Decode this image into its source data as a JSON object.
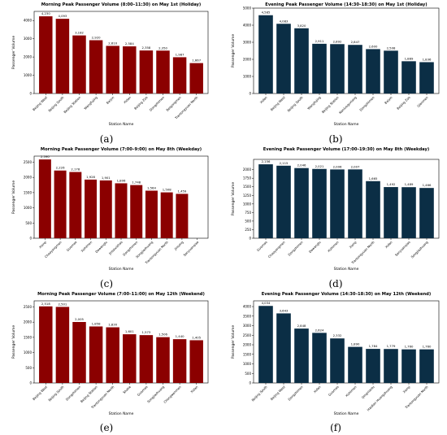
{
  "colors": {
    "red": "#8b0000",
    "blue": "#0b2e45"
  },
  "panel_labels": [
    "(a)",
    "(b)",
    "(c)",
    "(d)",
    "(e)",
    "(f)"
  ],
  "chart_data": [
    {
      "type": "bar",
      "title": "Morning Peak Passenger Volume (8:00–11:30) on May 1st (Holiday)",
      "xlabel": "Station Name",
      "ylabel": "Passenger Volume",
      "color": "red",
      "ylim": [
        0,
        4500
      ],
      "yticks": [
        0,
        1000,
        2000,
        3000,
        4000
      ],
      "categories": [
        "Beijing West",
        "Beijing South",
        "Beijing Station",
        "Wangfujing",
        "Baiyin",
        "Xidan",
        "Beijing Zoo",
        "Dongzhimen",
        "Beigongmen",
        "Tiantongyuan North"
      ],
      "values": [
        4230,
        4093,
        3182,
        2920,
        2610,
        2584,
        2358,
        2350,
        1987,
        1667
      ]
    },
    {
      "type": "bar",
      "title": "Evening Peak Passenger Volume (14:30–18:30) on May 1st (Holiday)",
      "xlabel": "Station Name",
      "ylabel": "Passenger Volume",
      "color": "blue",
      "ylim": [
        0,
        5000
      ],
      "yticks": [
        0,
        1000,
        2000,
        3000,
        4000,
        5000
      ],
      "categories": [
        "Xidan",
        "Beijing West",
        "Beijing South",
        "Wangfujing",
        "Beijing Station",
        "Nanluoguxiang",
        "Dongzhimen",
        "Baiyin",
        "Beijing Zoo",
        "Qianmen"
      ],
      "values": [
        4585,
        4083,
        3820,
        2911,
        2892,
        2847,
        2600,
        2508,
        1889,
        1836
      ]
    },
    {
      "type": "bar",
      "title": "Morning Peak Passenger Volume (7:00–9:00) on May 8th (Weekday)",
      "xlabel": "Station Name",
      "ylabel": "Passenger Volume",
      "color": "red",
      "ylim": [
        0,
        2700
      ],
      "yticks": [
        0,
        500,
        1000,
        1500,
        2000,
        2500
      ],
      "categories": [
        "Xierqi",
        "Chaoyangmen",
        "Guomao",
        "Xizhimen",
        "Dawanglu",
        "Jintaixizhao",
        "Dongzhimen",
        "Songjiazhuang",
        "Tiantongyuan North",
        "Jinsong",
        "Sanyuanqiao"
      ],
      "values": [
        2590,
        2226,
        2178,
        1928,
        1901,
        1806,
        1748,
        1564,
        1508,
        1459,
        null
      ]
    },
    {
      "type": "bar",
      "title": "Evening Peak Passenger Volume (17:00–19:30) on May 8th (Weekday)",
      "xlabel": "Station Name",
      "ylabel": "Passenger Volume",
      "color": "blue",
      "ylim": [
        0,
        2300
      ],
      "yticks": [
        0,
        250,
        500,
        750,
        1000,
        1250,
        1500,
        1750,
        2000
      ],
      "categories": [
        "Guomao",
        "Chaoyangmen",
        "Dongzhimen",
        "Dawanglu",
        "Xizhimen",
        "Xierqi",
        "Tiantongyuan North",
        "Xidan",
        "Sanyuanqiao",
        "Songjiazhuang"
      ],
      "values": [
        2156,
        2115,
        2046,
        2021,
        2006,
        2007,
        1665,
        1492,
        1489,
        1466
      ]
    },
    {
      "type": "bar",
      "title": "Morning Peak Passenger Volume (7:00–11:00) on May 12th (Weekend)",
      "xlabel": "Station Name",
      "ylabel": "Passenger Volume",
      "color": "red",
      "ylim": [
        0,
        2700
      ],
      "yticks": [
        0,
        500,
        1000,
        1500,
        2000,
        2500
      ],
      "categories": [
        "Beijing West",
        "Beijing South",
        "Dongzhimen",
        "Beijing Station",
        "Tiantongyuan North",
        "Shahe",
        "Guomao",
        "Songjiazhuang",
        "Chongwenmen",
        "Xidan"
      ],
      "values": [
        2518,
        2501,
        2005,
        1858,
        1830,
        1601,
        1573,
        1506,
        1440,
        1405
      ]
    },
    {
      "type": "bar",
      "title": "Evening Peak Passenger Volume (14:30–18:30) on May 12th (Weekend)",
      "xlabel": "Station Name",
      "ylabel": "Passenger Volume",
      "color": "blue",
      "ylim": [
        0,
        4300
      ],
      "yticks": [
        0,
        500,
        1000,
        1500,
        2000,
        2500,
        3000,
        3500,
        4000
      ],
      "categories": [
        "Beijing South",
        "Beijing West",
        "Dongzhimen",
        "Xidan",
        "Guomao",
        "Xizhimen",
        "Qingnianlu",
        "Haidian Huangzhuang",
        "Xierqi",
        "Tiantongyuan North"
      ],
      "values": [
        4034,
        3643,
        2848,
        2624,
        2332,
        1890,
        1784,
        1779,
        1760,
        1760
      ]
    }
  ]
}
